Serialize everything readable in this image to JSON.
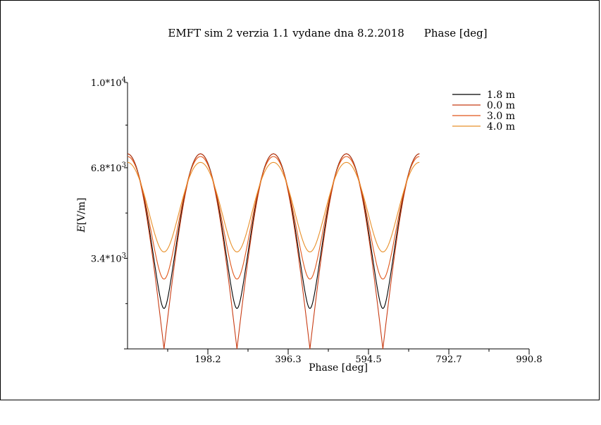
{
  "chart_data": {
    "type": "line",
    "title": "EMFT sim 2 verzia 1.1 vydane dna 8.2.2018",
    "title_suffix": "Phase   [deg]",
    "xlabel": "Phase   [deg]",
    "ylabel_main": "E",
    "ylabel_unit": "[V/m]",
    "xlim": [
      0,
      990.8
    ],
    "ylim": [
      0,
      10000
    ],
    "x_ticks": [
      {
        "value": 198.2,
        "label": "198.2"
      },
      {
        "value": 396.3,
        "label": "396.3"
      },
      {
        "value": 594.5,
        "label": "594.5"
      },
      {
        "value": 792.7,
        "label": "792.7"
      },
      {
        "value": 990.8,
        "label": "990.8"
      }
    ],
    "y_ticks": [
      {
        "value": 3400,
        "mantissa": "3.4*10",
        "exp": "3"
      },
      {
        "value": 6800,
        "mantissa": "6.8*10",
        "exp": "3"
      },
      {
        "value": 10000,
        "mantissa": "1.0*10",
        "exp": "4"
      }
    ],
    "x_range_data": [
      0,
      720
    ],
    "series": [
      {
        "name": "1.8 m",
        "color": "#000000",
        "max": 7320,
        "min": 1520
      },
      {
        "name": "0.0 m",
        "color": "#c83c14",
        "max": 7320,
        "min": 0
      },
      {
        "name": "3.0 m",
        "color": "#e0561a",
        "max": 7220,
        "min": 2620
      },
      {
        "name": "4.0 m",
        "color": "#e8902a",
        "max": 7000,
        "min": 3640
      }
    ]
  }
}
